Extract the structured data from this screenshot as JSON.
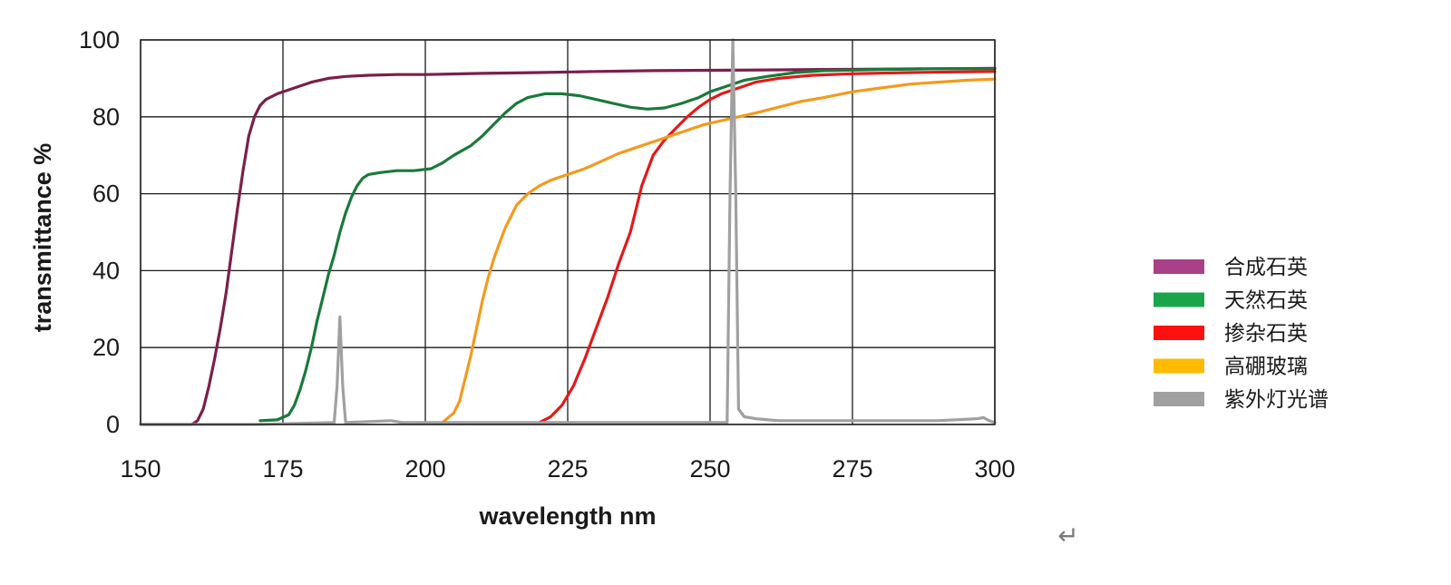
{
  "chart_data": {
    "type": "line",
    "xlabel": "wavelength nm",
    "ylabel": "transmittance %",
    "xlim": [
      150,
      300
    ],
    "ylim": [
      0,
      100
    ],
    "x_ticks": [
      "150",
      "175",
      "200",
      "225",
      "250",
      "275",
      "300"
    ],
    "y_ticks": [
      "0",
      "20",
      "40",
      "60",
      "80",
      "100"
    ],
    "grid": true,
    "legend_position": "right",
    "series": [
      {
        "name": "合成石英",
        "color": "#7b1f4a",
        "legend_color": "#a8418a",
        "points": [
          [
            150,
            0
          ],
          [
            159,
            0
          ],
          [
            160,
            1
          ],
          [
            161,
            4
          ],
          [
            162,
            10
          ],
          [
            163,
            17
          ],
          [
            164,
            25
          ],
          [
            165,
            34
          ],
          [
            166,
            45
          ],
          [
            167,
            56
          ],
          [
            168,
            66
          ],
          [
            169,
            75
          ],
          [
            170,
            80
          ],
          [
            171,
            83
          ],
          [
            172,
            84.5
          ],
          [
            174,
            86
          ],
          [
            176,
            87
          ],
          [
            178,
            88
          ],
          [
            180,
            89
          ],
          [
            183,
            90
          ],
          [
            186,
            90.5
          ],
          [
            190,
            90.8
          ],
          [
            195,
            91
          ],
          [
            200,
            91
          ],
          [
            210,
            91.3
          ],
          [
            220,
            91.5
          ],
          [
            230,
            91.8
          ],
          [
            240,
            92
          ],
          [
            250,
            92.1
          ],
          [
            260,
            92.2
          ],
          [
            270,
            92.3
          ],
          [
            280,
            92.4
          ],
          [
            290,
            92.5
          ],
          [
            300,
            92.6
          ]
        ]
      },
      {
        "name": "天然石英",
        "color": "#1a7a3a",
        "legend_color": "#1aa54b",
        "points": [
          [
            171,
            1
          ],
          [
            174,
            1.2
          ],
          [
            176,
            2.5
          ],
          [
            177,
            5
          ],
          [
            178,
            9
          ],
          [
            179,
            14
          ],
          [
            180,
            20
          ],
          [
            181,
            27
          ],
          [
            182,
            33
          ],
          [
            183,
            39
          ],
          [
            184,
            44
          ],
          [
            185,
            50
          ],
          [
            186,
            55
          ],
          [
            187,
            59
          ],
          [
            188,
            62
          ],
          [
            189,
            64
          ],
          [
            190,
            65
          ],
          [
            192,
            65.5
          ],
          [
            195,
            66
          ],
          [
            198,
            66
          ],
          [
            201,
            66.5
          ],
          [
            203,
            68
          ],
          [
            205,
            70
          ],
          [
            208,
            72.5
          ],
          [
            210,
            75
          ],
          [
            212,
            78
          ],
          [
            214,
            81
          ],
          [
            216,
            83.5
          ],
          [
            218,
            85
          ],
          [
            221,
            86
          ],
          [
            224,
            86
          ],
          [
            227,
            85.5
          ],
          [
            230,
            84.5
          ],
          [
            233,
            83.5
          ],
          [
            236,
            82.5
          ],
          [
            239,
            82
          ],
          [
            242,
            82.3
          ],
          [
            245,
            83.5
          ],
          [
            248,
            85
          ],
          [
            250,
            86.5
          ],
          [
            253,
            88
          ],
          [
            256,
            89.5
          ],
          [
            260,
            90.5
          ],
          [
            265,
            91.5
          ],
          [
            270,
            92
          ],
          [
            280,
            92.3
          ],
          [
            290,
            92.5
          ],
          [
            300,
            92.5
          ]
        ]
      },
      {
        "name": "掺杂石英",
        "color": "#e21a1a",
        "legend_color": "#ff1010",
        "points": [
          [
            220,
            0.5
          ],
          [
            222,
            2
          ],
          [
            224,
            5
          ],
          [
            226,
            10
          ],
          [
            228,
            17
          ],
          [
            230,
            25
          ],
          [
            232,
            33
          ],
          [
            234,
            42
          ],
          [
            236,
            50
          ],
          [
            237,
            56
          ],
          [
            238,
            62
          ],
          [
            239,
            66
          ],
          [
            240,
            70
          ],
          [
            242,
            74
          ],
          [
            244,
            77
          ],
          [
            246,
            80
          ],
          [
            248,
            82.5
          ],
          [
            250,
            84.5
          ],
          [
            252,
            86
          ],
          [
            255,
            87.5
          ],
          [
            258,
            89
          ],
          [
            262,
            90
          ],
          [
            268,
            90.8
          ],
          [
            275,
            91.2
          ],
          [
            285,
            91.5
          ],
          [
            300,
            91.8
          ]
        ]
      },
      {
        "name": "高硼玻璃",
        "color": "#f39a1e",
        "legend_color": "#ffbb00",
        "points": [
          [
            203,
            0.5
          ],
          [
            205,
            3
          ],
          [
            206,
            6
          ],
          [
            207,
            12
          ],
          [
            208,
            18
          ],
          [
            209,
            25
          ],
          [
            210,
            32
          ],
          [
            211,
            38
          ],
          [
            212,
            43
          ],
          [
            213,
            47
          ],
          [
            214,
            51
          ],
          [
            215,
            54
          ],
          [
            216,
            57
          ],
          [
            218,
            60
          ],
          [
            220,
            62
          ],
          [
            222,
            63.5
          ],
          [
            225,
            65
          ],
          [
            228,
            66.5
          ],
          [
            231,
            68.5
          ],
          [
            234,
            70.5
          ],
          [
            237,
            72
          ],
          [
            240,
            73.5
          ],
          [
            243,
            75
          ],
          [
            246,
            76.5
          ],
          [
            249,
            78
          ],
          [
            252,
            79
          ],
          [
            255,
            80
          ],
          [
            258,
            81
          ],
          [
            262,
            82.5
          ],
          [
            266,
            84
          ],
          [
            270,
            85
          ],
          [
            275,
            86.5
          ],
          [
            280,
            87.5
          ],
          [
            285,
            88.5
          ],
          [
            290,
            89
          ],
          [
            295,
            89.5
          ],
          [
            300,
            89.8
          ]
        ]
      },
      {
        "name": "紫外灯光谱",
        "color": "#a0a0a0",
        "legend_color": "#a0a0a0",
        "points": [
          [
            150,
            0
          ],
          [
            160,
            0
          ],
          [
            170,
            0
          ],
          [
            184,
            0.5
          ],
          [
            184.5,
            10
          ],
          [
            185,
            28
          ],
          [
            185.5,
            10
          ],
          [
            186,
            0.5
          ],
          [
            194,
            1
          ],
          [
            196,
            0.5
          ],
          [
            253,
            0.5
          ],
          [
            253.5,
            60
          ],
          [
            254,
            100
          ],
          [
            254.5,
            60
          ],
          [
            255,
            4
          ],
          [
            256,
            2
          ],
          [
            258,
            1.5
          ],
          [
            262,
            1
          ],
          [
            270,
            1
          ],
          [
            280,
            1
          ],
          [
            290,
            1
          ],
          [
            297,
            1.5
          ],
          [
            298,
            1.8
          ],
          [
            299,
            1
          ],
          [
            300,
            0.5
          ]
        ]
      }
    ]
  },
  "return_mark": "↵"
}
